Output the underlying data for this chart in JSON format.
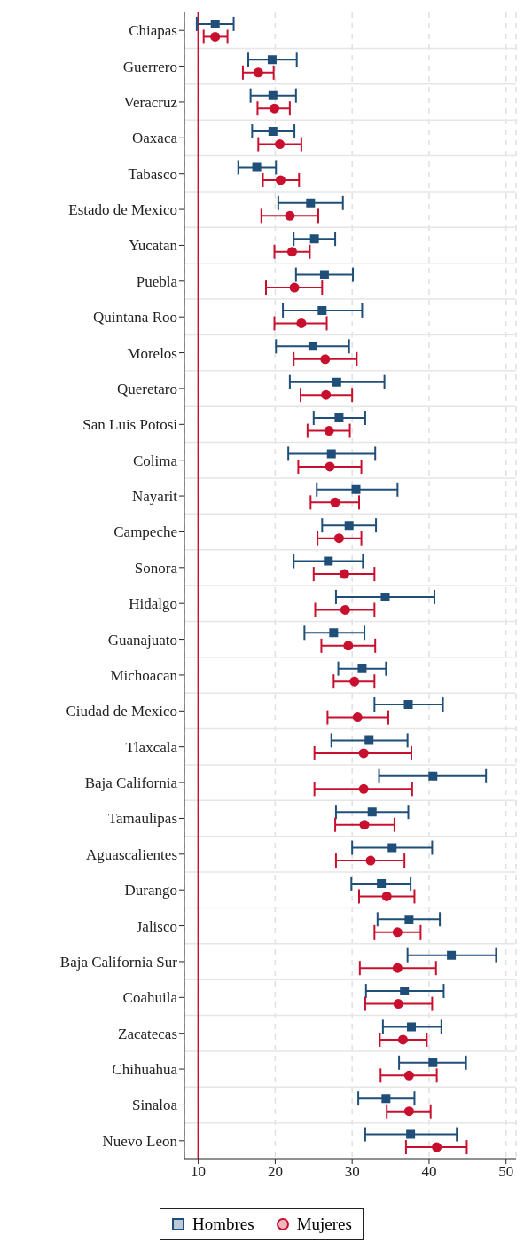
{
  "chart_data": {
    "type": "scatter",
    "orientation": "horizontal",
    "categories": [
      "Chiapas",
      "Guerrero",
      "Veracruz",
      "Oaxaca",
      "Tabasco",
      "Estado de Mexico",
      "Yucatan",
      "Puebla",
      "Quintana Roo",
      "Morelos",
      "Queretaro",
      "San Luis Potosi",
      "Colima",
      "Nayarit",
      "Campeche",
      "Sonora",
      "Hidalgo",
      "Guanajuato",
      "Michoacan",
      "Ciudad de Mexico",
      "Tlaxcala",
      "Baja California",
      "Tamaulipas",
      "Aguascalientes",
      "Durango",
      "Jalisco",
      "Baja California Sur",
      "Coahuila",
      "Zacatecas",
      "Chihuahua",
      "Sinaloa",
      "Nuevo Leon"
    ],
    "series": [
      {
        "name": "Hombres",
        "color": "#1f4e79",
        "marker": "square",
        "values": [
          12.2,
          19.6,
          19.7,
          19.7,
          17.6,
          24.6,
          25.1,
          26.4,
          26.1,
          24.9,
          28.0,
          28.3,
          27.3,
          30.5,
          29.6,
          26.9,
          34.3,
          27.6,
          31.3,
          37.3,
          32.2,
          40.5,
          32.6,
          35.2,
          33.8,
          37.4,
          42.9,
          36.8,
          37.7,
          40.5,
          34.4,
          37.6
        ],
        "errors": [
          [
            9.8,
            14.6
          ],
          [
            16.5,
            22.8
          ],
          [
            16.8,
            22.7
          ],
          [
            17.0,
            22.5
          ],
          [
            15.2,
            20.1
          ],
          [
            20.4,
            28.8
          ],
          [
            22.4,
            27.8
          ],
          [
            22.7,
            30.1
          ],
          [
            21.0,
            31.3
          ],
          [
            20.1,
            29.6
          ],
          [
            21.9,
            34.2
          ],
          [
            25.0,
            31.7
          ],
          [
            21.7,
            33.0
          ],
          [
            25.4,
            35.9
          ],
          [
            26.1,
            33.1
          ],
          [
            22.4,
            31.4
          ],
          [
            27.9,
            40.7
          ],
          [
            23.8,
            31.6
          ],
          [
            28.2,
            34.4
          ],
          [
            32.9,
            41.8
          ],
          [
            27.3,
            37.2
          ],
          [
            33.5,
            47.4
          ],
          [
            27.9,
            37.3
          ],
          [
            30.0,
            40.4
          ],
          [
            29.9,
            37.6
          ],
          [
            33.3,
            41.4
          ],
          [
            37.2,
            48.7
          ],
          [
            31.8,
            41.9
          ],
          [
            34.0,
            41.6
          ],
          [
            36.1,
            44.8
          ],
          [
            30.8,
            38.1
          ],
          [
            31.7,
            43.6
          ]
        ]
      },
      {
        "name": "Mujeres",
        "color": "#c8102e",
        "marker": "circle",
        "values": [
          12.2,
          17.8,
          19.9,
          20.6,
          20.7,
          21.9,
          22.2,
          22.5,
          23.4,
          26.5,
          26.6,
          27.0,
          27.1,
          27.8,
          28.3,
          29.0,
          29.1,
          29.5,
          30.3,
          30.7,
          31.5,
          31.5,
          31.6,
          32.4,
          34.5,
          35.9,
          35.9,
          36.0,
          36.6,
          37.4,
          37.4,
          41.0
        ],
        "errors": [
          [
            10.7,
            13.8
          ],
          [
            15.8,
            19.8
          ],
          [
            17.7,
            21.9
          ],
          [
            17.8,
            23.4
          ],
          [
            18.4,
            23.1
          ],
          [
            18.2,
            25.6
          ],
          [
            19.9,
            24.5
          ],
          [
            18.8,
            26.1
          ],
          [
            19.9,
            26.7
          ],
          [
            22.4,
            30.6
          ],
          [
            23.3,
            30.0
          ],
          [
            24.2,
            29.7
          ],
          [
            23.0,
            31.2
          ],
          [
            24.6,
            30.9
          ],
          [
            25.5,
            31.2
          ],
          [
            25.0,
            32.9
          ],
          [
            25.2,
            32.9
          ],
          [
            26.0,
            33.0
          ],
          [
            27.6,
            32.9
          ],
          [
            26.8,
            34.7
          ],
          [
            25.1,
            37.7
          ],
          [
            25.1,
            37.8
          ],
          [
            27.8,
            35.5
          ],
          [
            27.9,
            36.8
          ],
          [
            30.9,
            38.1
          ],
          [
            32.9,
            38.9
          ],
          [
            31.0,
            40.9
          ],
          [
            31.7,
            40.4
          ],
          [
            33.6,
            39.7
          ],
          [
            33.7,
            41.0
          ],
          [
            34.5,
            40.2
          ],
          [
            37.0,
            44.9
          ]
        ]
      }
    ],
    "xlim": [
      8.2,
      51.3
    ],
    "xticks": [
      10,
      20,
      30,
      40,
      50
    ],
    "ref_lines": [
      {
        "axis": "x",
        "value": 10,
        "color": "#c8102e"
      }
    ],
    "grid": true,
    "legend": "bottom"
  }
}
